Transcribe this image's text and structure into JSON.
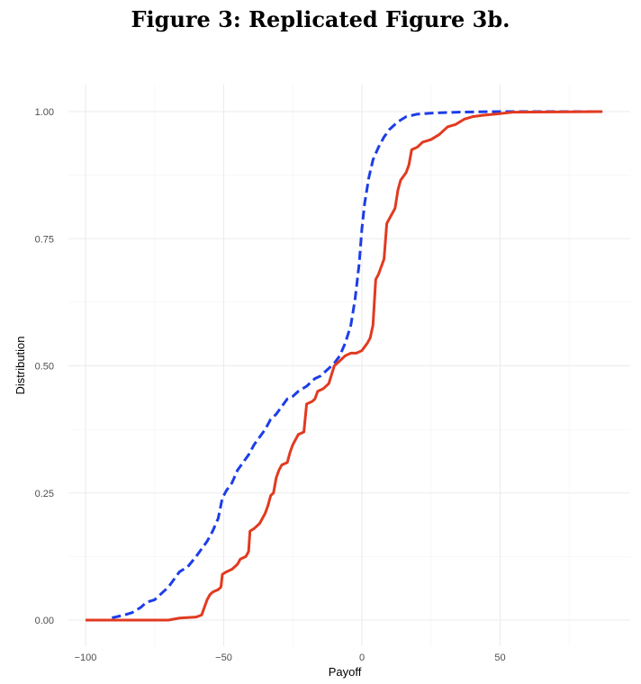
{
  "figure": {
    "caption": "Figure 3: Replicated Figure 3b."
  },
  "chart_data": {
    "type": "line",
    "title": "",
    "xlabel": "Payoff",
    "ylabel": "Distribution",
    "xlim": [
      -100,
      87
    ],
    "ylim": [
      0,
      1
    ],
    "x_ticks": [
      -100,
      -50,
      0,
      50
    ],
    "x_tick_labels": [
      "−100",
      "−50",
      "0",
      "50"
    ],
    "y_ticks": [
      0,
      0.25,
      0.5,
      0.75,
      1
    ],
    "y_tick_labels": [
      "0.00",
      "0.25",
      "0.50",
      "0.75",
      "1.00"
    ],
    "grid": true,
    "legend": "none",
    "series": [
      {
        "color": "#1c3de8",
        "line_style": "dashed",
        "points": [
          [
            -100,
            0
          ],
          [
            -92,
            0
          ],
          [
            -90,
            0.005
          ],
          [
            -86,
            0.01
          ],
          [
            -83,
            0.015
          ],
          [
            -80,
            0.025
          ],
          [
            -78,
            0.035
          ],
          [
            -75,
            0.04
          ],
          [
            -72,
            0.055
          ],
          [
            -70,
            0.065
          ],
          [
            -68,
            0.08
          ],
          [
            -66,
            0.095
          ],
          [
            -63,
            0.105
          ],
          [
            -60,
            0.125
          ],
          [
            -58,
            0.14
          ],
          [
            -56,
            0.155
          ],
          [
            -54,
            0.175
          ],
          [
            -52,
            0.2
          ],
          [
            -50.5,
            0.24
          ],
          [
            -49,
            0.255
          ],
          [
            -47,
            0.27
          ],
          [
            -45,
            0.295
          ],
          [
            -43,
            0.31
          ],
          [
            -41,
            0.325
          ],
          [
            -39,
            0.345
          ],
          [
            -37,
            0.36
          ],
          [
            -35,
            0.375
          ],
          [
            -33,
            0.395
          ],
          [
            -31,
            0.405
          ],
          [
            -29,
            0.42
          ],
          [
            -27,
            0.435
          ],
          [
            -25,
            0.44
          ],
          [
            -23,
            0.45
          ],
          [
            -20,
            0.46
          ],
          [
            -17,
            0.475
          ],
          [
            -15,
            0.48
          ],
          [
            -13,
            0.49
          ],
          [
            -10,
            0.505
          ],
          [
            -8,
            0.52
          ],
          [
            -6,
            0.545
          ],
          [
            -4,
            0.58
          ],
          [
            -2.5,
            0.63
          ],
          [
            -1,
            0.7
          ],
          [
            0,
            0.77
          ],
          [
            1,
            0.82
          ],
          [
            2.5,
            0.87
          ],
          [
            4,
            0.905
          ],
          [
            6,
            0.93
          ],
          [
            8,
            0.95
          ],
          [
            10,
            0.965
          ],
          [
            13,
            0.98
          ],
          [
            16,
            0.99
          ],
          [
            20,
            0.995
          ],
          [
            25,
            0.997
          ],
          [
            35,
            0.999
          ],
          [
            50,
            1
          ],
          [
            87,
            1
          ]
        ]
      },
      {
        "color": "#e23a20",
        "line_style": "solid",
        "points": [
          [
            -100,
            0
          ],
          [
            -70,
            0
          ],
          [
            -68,
            0.002
          ],
          [
            -66,
            0.004
          ],
          [
            -60,
            0.006
          ],
          [
            -58,
            0.01
          ],
          [
            -57,
            0.025
          ],
          [
            -56,
            0.04
          ],
          [
            -55,
            0.05
          ],
          [
            -54,
            0.055
          ],
          [
            -52,
            0.06
          ],
          [
            -51,
            0.065
          ],
          [
            -50.5,
            0.09
          ],
          [
            -49,
            0.095
          ],
          [
            -47,
            0.1
          ],
          [
            -45,
            0.11
          ],
          [
            -44,
            0.12
          ],
          [
            -42,
            0.125
          ],
          [
            -41,
            0.135
          ],
          [
            -40.5,
            0.175
          ],
          [
            -39,
            0.18
          ],
          [
            -37,
            0.19
          ],
          [
            -36,
            0.2
          ],
          [
            -35,
            0.21
          ],
          [
            -34,
            0.225
          ],
          [
            -33,
            0.245
          ],
          [
            -32,
            0.25
          ],
          [
            -31,
            0.28
          ],
          [
            -30,
            0.295
          ],
          [
            -29,
            0.305
          ],
          [
            -27,
            0.31
          ],
          [
            -26,
            0.33
          ],
          [
            -25,
            0.345
          ],
          [
            -23,
            0.365
          ],
          [
            -21,
            0.37
          ],
          [
            -20,
            0.425
          ],
          [
            -18,
            0.43
          ],
          [
            -17,
            0.435
          ],
          [
            -16,
            0.45
          ],
          [
            -14,
            0.455
          ],
          [
            -12,
            0.465
          ],
          [
            -10,
            0.5
          ],
          [
            -8,
            0.51
          ],
          [
            -6,
            0.52
          ],
          [
            -4,
            0.525
          ],
          [
            -2,
            0.525
          ],
          [
            0,
            0.53
          ],
          [
            2,
            0.545
          ],
          [
            3,
            0.555
          ],
          [
            4,
            0.58
          ],
          [
            5,
            0.67
          ],
          [
            6,
            0.68
          ],
          [
            7,
            0.695
          ],
          [
            8,
            0.71
          ],
          [
            9,
            0.78
          ],
          [
            10,
            0.79
          ],
          [
            11,
            0.8
          ],
          [
            12,
            0.81
          ],
          [
            13,
            0.845
          ],
          [
            14,
            0.865
          ],
          [
            16,
            0.88
          ],
          [
            17,
            0.895
          ],
          [
            18,
            0.925
          ],
          [
            20,
            0.93
          ],
          [
            22,
            0.94
          ],
          [
            25,
            0.945
          ],
          [
            28,
            0.955
          ],
          [
            31,
            0.97
          ],
          [
            34,
            0.975
          ],
          [
            37,
            0.985
          ],
          [
            40,
            0.99
          ],
          [
            44,
            0.993
          ],
          [
            48,
            0.995
          ],
          [
            55,
            0.999
          ],
          [
            87,
            1
          ]
        ]
      }
    ]
  }
}
